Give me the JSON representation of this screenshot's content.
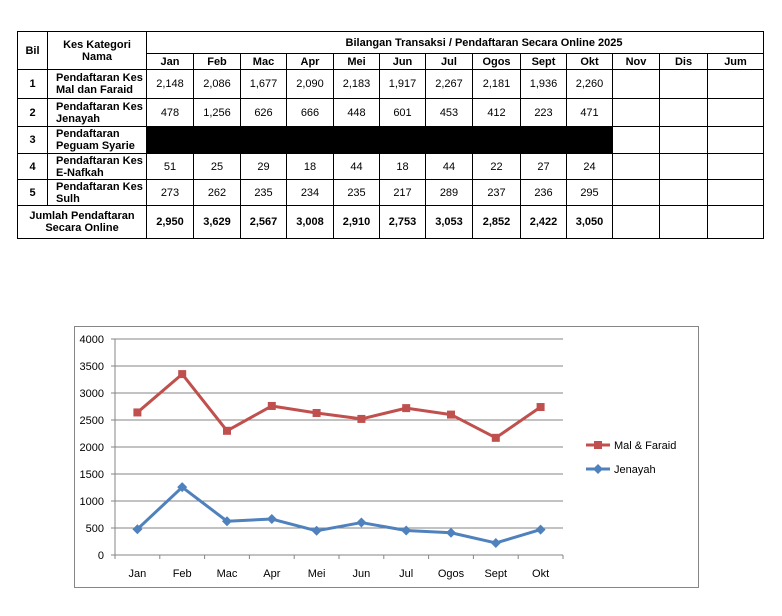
{
  "table": {
    "headers": {
      "bil": "Bil",
      "category": "Kes Kategori Nama",
      "group": "Bilangan Transaksi / Pendaftaran Secara Online 2025",
      "months": [
        "Jan",
        "Feb",
        "Mac",
        "Apr",
        "Mei",
        "Jun",
        "Jul",
        "Ogos",
        "Sept",
        "Okt",
        "Nov",
        "Dis",
        "Jum"
      ]
    },
    "rows": [
      {
        "bil": "1",
        "label": "Pendaftaran Kes Mal dan Faraid",
        "values": [
          "2,148",
          "2,086",
          "1,677",
          "2,090",
          "2,183",
          "1,917",
          "2,267",
          "2,181",
          "1,936",
          "2,260"
        ]
      },
      {
        "bil": "2",
        "label": "Pendaftaran Kes Jenayah",
        "values": [
          "478",
          "1,256",
          "626",
          "666",
          "448",
          "601",
          "453",
          "412",
          "223",
          "471"
        ]
      },
      {
        "bil": "3",
        "label": "Pendaftaran Peguam Syarie"
      },
      {
        "bil": "4",
        "label": "Pendaftaran Kes E-Nafkah",
        "values": [
          "51",
          "25",
          "29",
          "18",
          "44",
          "18",
          "44",
          "22",
          "27",
          "24"
        ]
      },
      {
        "bil": "5",
        "label": "Pendaftaran Kes Sulh",
        "values": [
          "273",
          "262",
          "235",
          "234",
          "235",
          "217",
          "289",
          "237",
          "236",
          "295"
        ]
      }
    ],
    "total": {
      "label": "Jumlah Pendaftaran Secara Online",
      "values": [
        "2,950",
        "3,629",
        "2,567",
        "3,008",
        "2,910",
        "2,753",
        "3,053",
        "2,852",
        "2,422",
        "3,050"
      ]
    }
  },
  "chart_data": {
    "type": "line",
    "categories": [
      "Jan",
      "Feb",
      "Mac",
      "Apr",
      "Mei",
      "Jun",
      "Jul",
      "Ogos",
      "Sept",
      "Okt"
    ],
    "series": [
      {
        "name": "Mal & Faraid",
        "color": "#c0504d",
        "marker": "square",
        "values": [
          2640,
          3350,
          2300,
          2760,
          2630,
          2520,
          2720,
          2600,
          2170,
          2740
        ]
      },
      {
        "name": "Jenayah",
        "color": "#4f81bd",
        "marker": "diamond",
        "values": [
          478,
          1256,
          626,
          666,
          448,
          601,
          453,
          412,
          223,
          471
        ]
      }
    ],
    "ylim": [
      0,
      4000
    ],
    "yticks": [
      0,
      500,
      1000,
      1500,
      2000,
      2500,
      3000,
      3500,
      4000
    ],
    "grid": true,
    "legend": "right"
  }
}
